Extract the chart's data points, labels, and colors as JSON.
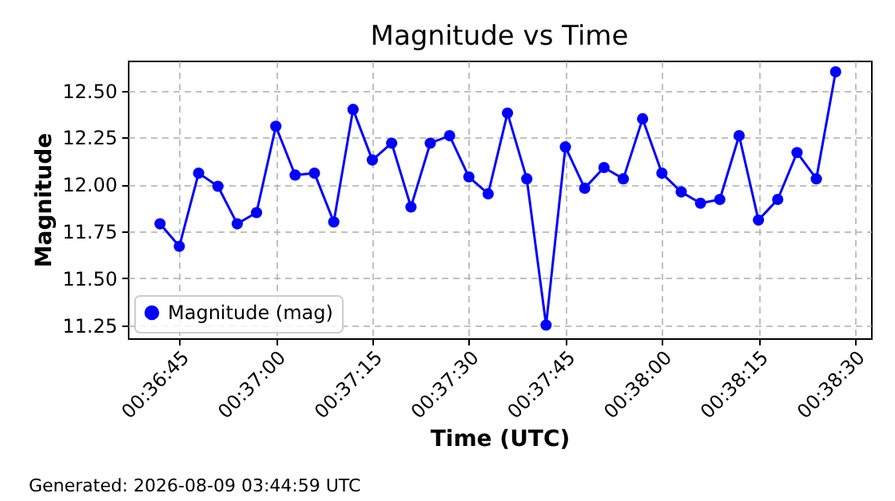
{
  "chart_data": {
    "type": "line",
    "title": "Magnitude vs Time",
    "xlabel": "Time (UTC)",
    "ylabel": "Magnitude",
    "x": [
      0.611667,
      0.6125,
      0.613333,
      0.614167,
      0.615,
      0.615833,
      0.616667,
      0.6175,
      0.618333,
      0.619167,
      0.62,
      0.620833,
      0.621667,
      0.6225,
      0.623333,
      0.624167,
      0.625,
      0.625833,
      0.626667,
      0.6275,
      0.628333,
      0.629167,
      0.63,
      0.630833,
      0.631667,
      0.6325,
      0.633333,
      0.634167,
      0.635,
      0.635833,
      0.636667,
      0.6375,
      0.638333,
      0.639167,
      0.64,
      0.640833
    ],
    "series": [
      {
        "name": "Magnitude (mag)",
        "color": "#0000ff",
        "values": [
          11.79,
          11.67,
          12.06,
          11.99,
          11.79,
          11.85,
          12.31,
          12.05,
          12.06,
          11.8,
          12.4,
          12.13,
          12.22,
          11.88,
          12.22,
          12.26,
          12.04,
          11.95,
          12.38,
          12.03,
          11.25,
          12.2,
          11.98,
          12.09,
          12.03,
          12.35,
          12.06,
          11.96,
          11.9,
          11.92,
          12.26,
          11.81,
          11.92,
          12.17,
          12.03,
          12.6
        ]
      }
    ],
    "xlim": [
      0.610278,
      0.642361
    ],
    "xticks": [
      {
        "value": 0.6125,
        "label": "00:36:45"
      },
      {
        "value": 0.616667,
        "label": "00:37:00"
      },
      {
        "value": 0.620833,
        "label": "00:37:15"
      },
      {
        "value": 0.625,
        "label": "00:37:30"
      },
      {
        "value": 0.629167,
        "label": "00:37:45"
      },
      {
        "value": 0.633333,
        "label": "00:38:00"
      },
      {
        "value": 0.6375,
        "label": "00:38:15"
      },
      {
        "value": 0.641667,
        "label": "00:38:30"
      }
    ],
    "ylim": [
      11.18,
      12.66
    ],
    "yticks": [
      11.25,
      {
        "value": 11.5,
        "label": "11.50"
      },
      11.75,
      {
        "value": 12,
        "label": "12.00"
      },
      12.25,
      {
        "value": 12.5,
        "label": "12.50"
      }
    ],
    "grid": true,
    "legend": "bottom left",
    "marker": "circle",
    "line_style": "solid",
    "annotations": [
      "Generated: 2026-08-09 03:44:59 UTC"
    ]
  }
}
